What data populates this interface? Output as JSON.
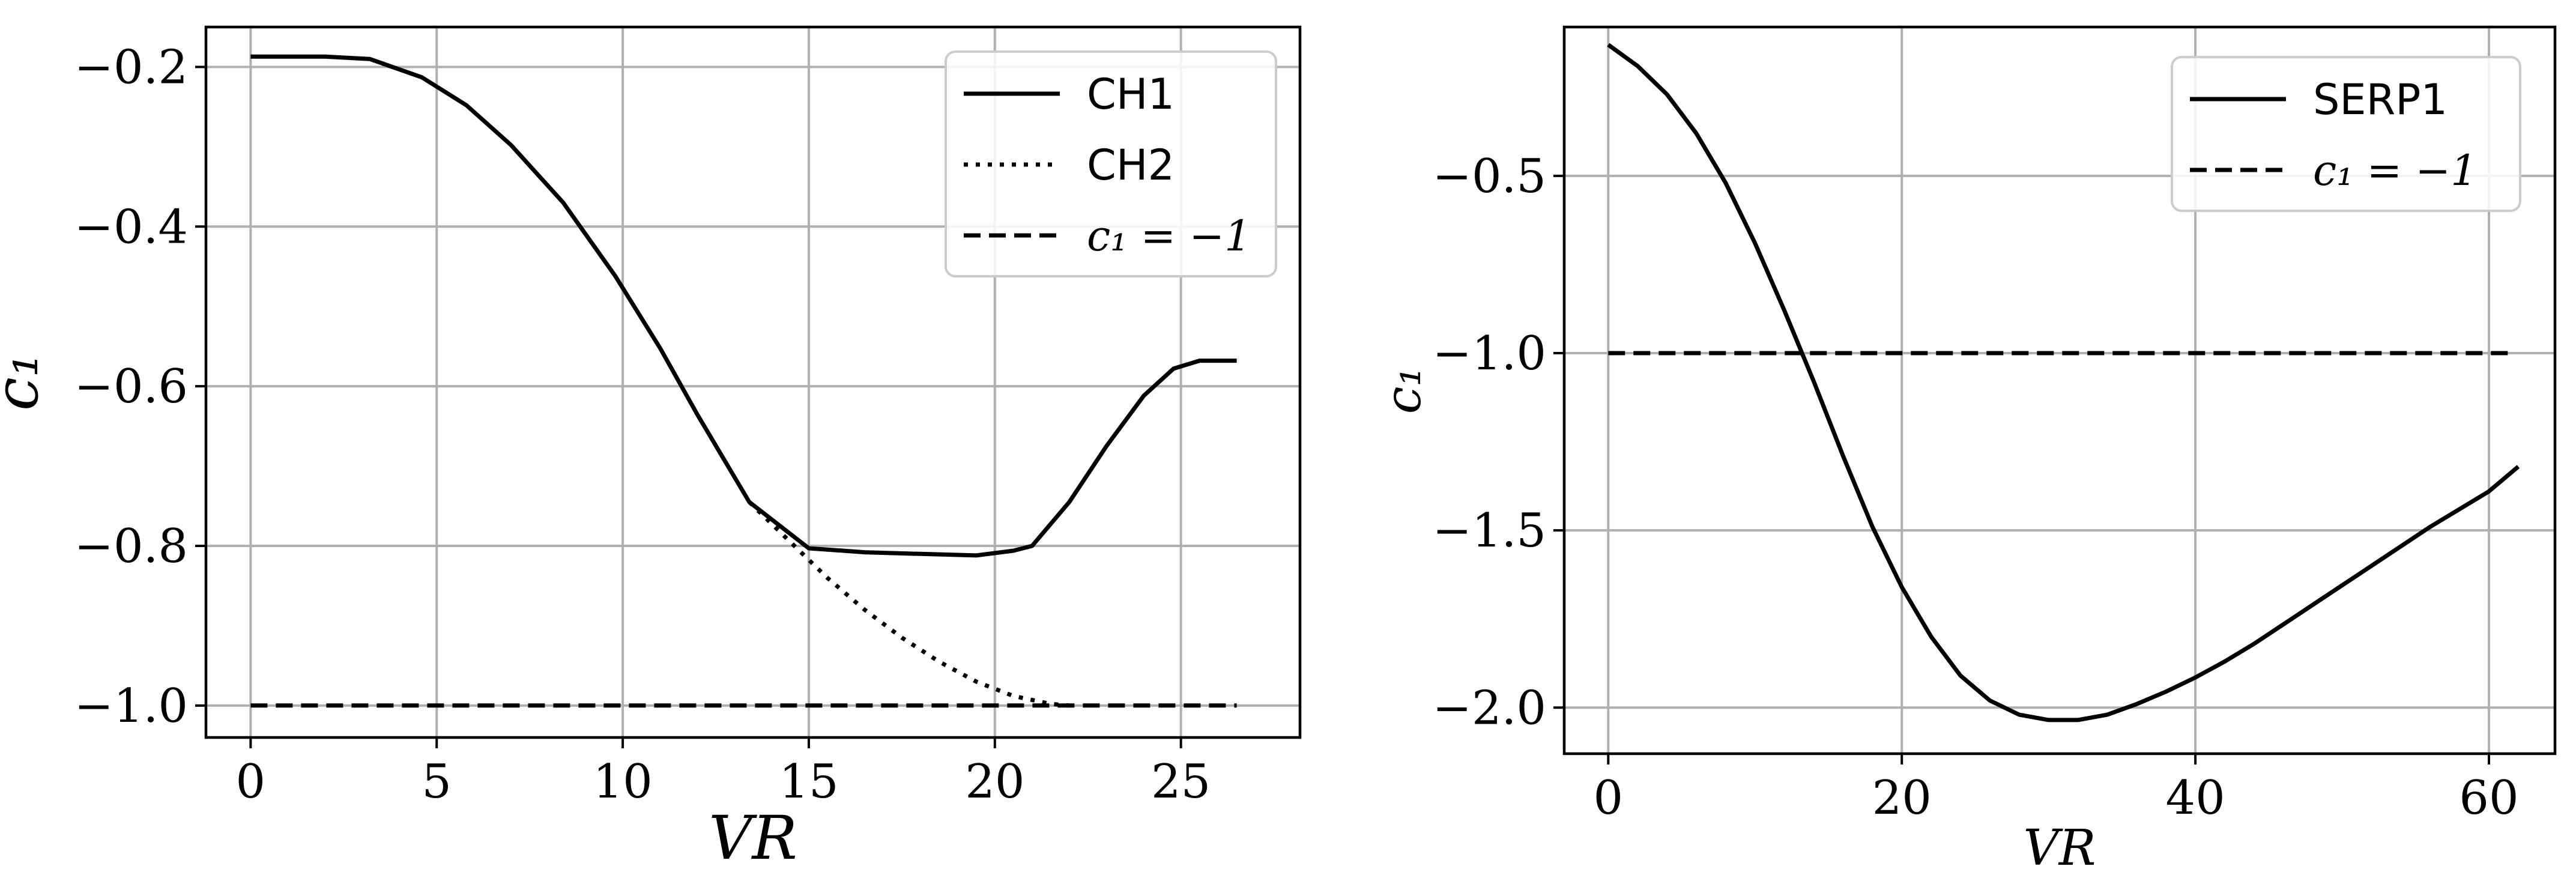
{
  "chart_data": [
    {
      "type": "line",
      "xlabel": "VR",
      "ylabel": "c₁",
      "xlim": [
        -1.2,
        28.2
      ],
      "ylim": [
        -1.04,
        -0.15
      ],
      "xticks": [
        0,
        5,
        10,
        15,
        20,
        25
      ],
      "yticks": [
        -0.2,
        -0.4,
        -0.6,
        -0.8,
        -1.0
      ],
      "xtick_labels": [
        "0",
        "5",
        "10",
        "15",
        "20",
        "25"
      ],
      "ytick_labels": [
        "−0.2",
        "−0.4",
        "−0.6",
        "−0.8",
        "−1.0"
      ],
      "grid": true,
      "legend_position": "top-right",
      "series": [
        {
          "name": "CH1",
          "style": "solid",
          "x": [
            0,
            1,
            2,
            3.2,
            4.6,
            5.8,
            7,
            8.4,
            9.8,
            11,
            12,
            13.4,
            15,
            16.5,
            18,
            19.5,
            20.5,
            21,
            22,
            23,
            24,
            24.8,
            25.5,
            26.5
          ],
          "y": [
            -0.187,
            -0.187,
            -0.187,
            -0.19,
            -0.213,
            -0.248,
            -0.298,
            -0.37,
            -0.462,
            -0.552,
            -0.635,
            -0.745,
            -0.803,
            -0.808,
            -0.81,
            -0.812,
            -0.806,
            -0.8,
            -0.745,
            -0.675,
            -0.612,
            -0.578,
            -0.568,
            -0.568
          ]
        },
        {
          "name": "CH2",
          "style": "dotted",
          "x": [
            13.4,
            14.5,
            15.5,
            16.5,
            17.5,
            18.5,
            19.5,
            20.5,
            21.5,
            22
          ],
          "y": [
            -0.745,
            -0.795,
            -0.84,
            -0.88,
            -0.915,
            -0.945,
            -0.97,
            -0.988,
            -0.998,
            -1.0
          ]
        },
        {
          "name": "c₁ = −1",
          "style": "dashed",
          "x": [
            0,
            26.5
          ],
          "y": [
            -1.0,
            -1.0
          ]
        }
      ]
    },
    {
      "type": "line",
      "xlabel": "VR",
      "ylabel": "c₁",
      "xlim": [
        -3,
        64.5
      ],
      "ylim": [
        -2.13,
        -0.08
      ],
      "xticks": [
        0,
        20,
        40,
        60
      ],
      "yticks": [
        -0.5,
        -1.0,
        -1.5,
        -2.0
      ],
      "xtick_labels": [
        "0",
        "20",
        "40",
        "60"
      ],
      "ytick_labels": [
        "−0.5",
        "−1.0",
        "−1.5",
        "−2.0"
      ],
      "grid": true,
      "legend_position": "top-right",
      "series": [
        {
          "name": "SERP1",
          "style": "solid",
          "x": [
            0,
            2,
            4,
            6,
            8,
            10,
            12,
            14,
            16,
            18,
            20,
            22,
            24,
            26,
            28,
            30,
            32,
            34,
            36,
            38,
            40,
            42,
            44,
            46,
            48,
            50,
            52,
            54,
            56,
            58,
            60,
            62
          ],
          "y": [
            -0.13,
            -0.19,
            -0.27,
            -0.38,
            -0.52,
            -0.69,
            -0.88,
            -1.08,
            -1.29,
            -1.49,
            -1.66,
            -1.8,
            -1.91,
            -1.98,
            -2.02,
            -2.035,
            -2.035,
            -2.02,
            -1.99,
            -1.955,
            -1.915,
            -1.87,
            -1.82,
            -1.765,
            -1.71,
            -1.655,
            -1.6,
            -1.545,
            -1.49,
            -1.44,
            -1.39,
            -1.32
          ]
        },
        {
          "name": "c₁ = −1",
          "style": "dashed",
          "x": [
            0,
            61.7
          ],
          "y": [
            -1.0,
            -1.0
          ]
        }
      ]
    }
  ]
}
